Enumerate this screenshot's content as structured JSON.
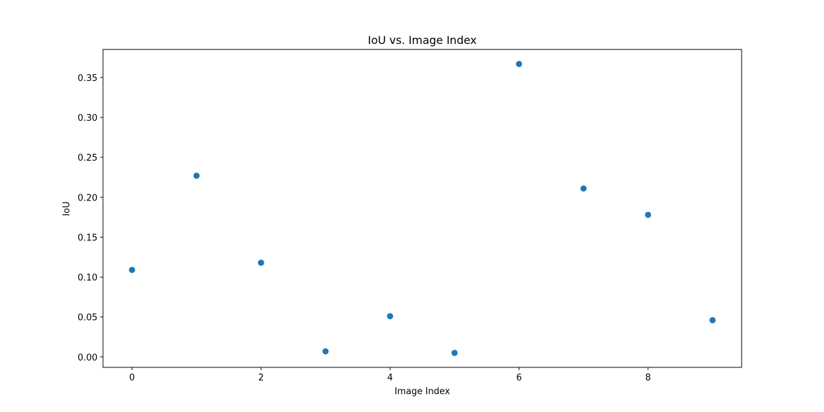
{
  "chart_data": {
    "type": "scatter",
    "title": "IoU vs. Image Index",
    "xlabel": "Image Index",
    "ylabel": "IoU",
    "x": [
      0,
      1,
      2,
      3,
      4,
      5,
      6,
      7,
      8,
      9
    ],
    "y": [
      0.109,
      0.227,
      0.118,
      0.007,
      0.051,
      0.005,
      0.367,
      0.211,
      0.178,
      0.046
    ],
    "xlim": [
      -0.45,
      9.45
    ],
    "ylim": [
      -0.0131,
      0.3852
    ],
    "xticks": [
      0,
      2,
      4,
      6,
      8
    ],
    "xtick_labels": [
      "0",
      "2",
      "4",
      "6",
      "8"
    ],
    "yticks": [
      0.0,
      0.05,
      0.1,
      0.15,
      0.2,
      0.25,
      0.3,
      0.35
    ],
    "ytick_labels": [
      "0.00",
      "0.05",
      "0.10",
      "0.15",
      "0.20",
      "0.25",
      "0.30",
      "0.35"
    ],
    "grid": false,
    "marker_color": "#1f77b4"
  }
}
